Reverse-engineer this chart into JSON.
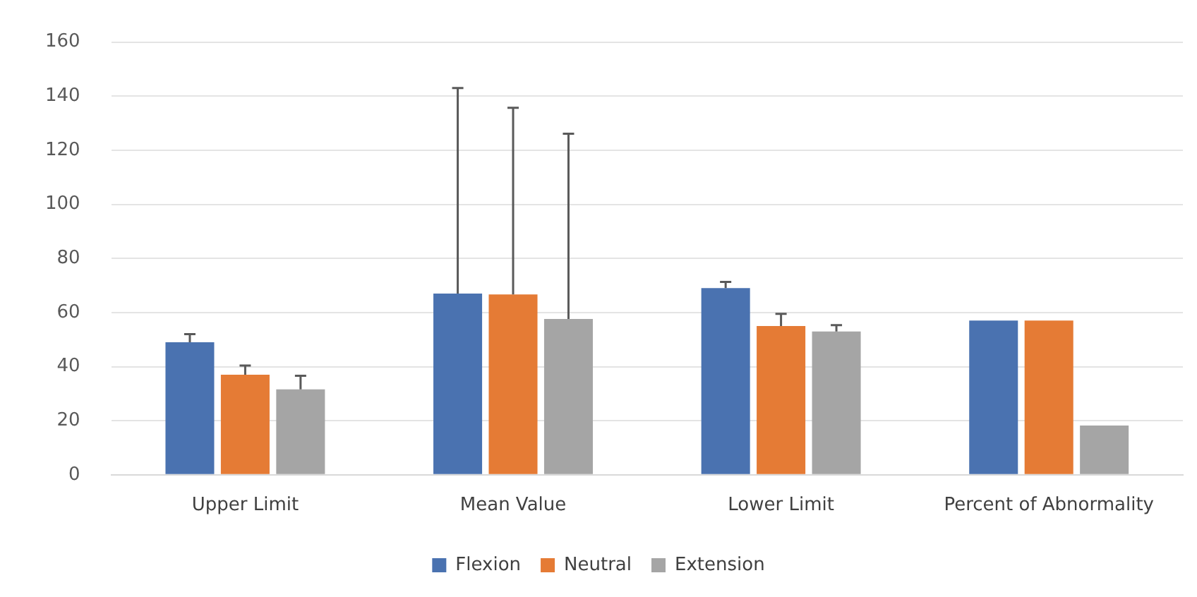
{
  "chart_data": {
    "type": "bar",
    "categories": [
      "Upper Limit",
      "Mean Value",
      "Lower Limit",
      "Percent of Abnormality"
    ],
    "series": [
      {
        "name": "Flexion",
        "color": "#4a72b0",
        "values": [
          49,
          67,
          69,
          57
        ],
        "errors": [
          [
            49,
            52
          ],
          [
            67,
            143
          ],
          [
            69,
            71.3
          ],
          null
        ]
      },
      {
        "name": "Neutral",
        "color": "#e57b35",
        "values": [
          37,
          66.7,
          55,
          57
        ],
        "errors": [
          [
            37,
            40.4
          ],
          [
            66.7,
            135.7
          ],
          [
            55,
            59.5
          ],
          null
        ]
      },
      {
        "name": "Extension",
        "color": "#a5a5a5",
        "values": [
          31.6,
          57.6,
          53,
          18.2
        ],
        "errors": [
          [
            31.6,
            36.6
          ],
          [
            57.6,
            126.1
          ],
          [
            53,
            55.3
          ],
          null
        ]
      }
    ],
    "ylim": [
      0,
      160
    ],
    "yticks": [
      0,
      20,
      40,
      60,
      80,
      100,
      120,
      140,
      160
    ],
    "grid": "y",
    "legend": "bottom"
  }
}
